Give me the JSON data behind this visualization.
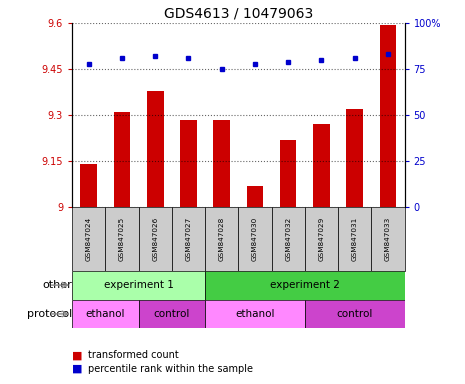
{
  "title": "GDS4613 / 10479063",
  "samples": [
    "GSM847024",
    "GSM847025",
    "GSM847026",
    "GSM847027",
    "GSM847028",
    "GSM847030",
    "GSM847032",
    "GSM847029",
    "GSM847031",
    "GSM847033"
  ],
  "transformed_count": [
    9.14,
    9.31,
    9.38,
    9.285,
    9.285,
    9.07,
    9.22,
    9.27,
    9.32,
    9.595
  ],
  "percentile_rank": [
    78,
    81,
    82,
    81,
    75,
    78,
    79,
    80,
    81,
    83
  ],
  "ylim_left": [
    9.0,
    9.6
  ],
  "ylim_right": [
    0,
    100
  ],
  "yticks_left": [
    9.0,
    9.15,
    9.3,
    9.45,
    9.6
  ],
  "yticks_right": [
    0,
    25,
    50,
    75,
    100
  ],
  "ytick_labels_left": [
    "9",
    "9.15",
    "9.3",
    "9.45",
    "9.6"
  ],
  "ytick_labels_right": [
    "0",
    "25",
    "50",
    "75",
    "100%"
  ],
  "bar_color": "#cc0000",
  "dot_color": "#0000cc",
  "experiment1_color": "#aaffaa",
  "experiment2_color": "#44cc44",
  "ethanol_color": "#ff88ff",
  "control_color": "#cc44cc",
  "sample_bg_color": "#cccccc",
  "other_groups": [
    {
      "label": "experiment 1",
      "start": 0,
      "end": 4
    },
    {
      "label": "experiment 2",
      "start": 4,
      "end": 10
    }
  ],
  "protocol_groups": [
    {
      "label": "ethanol",
      "start": 0,
      "end": 2,
      "color": "#ff88ff"
    },
    {
      "label": "control",
      "start": 2,
      "end": 4,
      "color": "#cc44cc"
    },
    {
      "label": "ethanol",
      "start": 4,
      "end": 7,
      "color": "#ff88ff"
    },
    {
      "label": "control",
      "start": 7,
      "end": 10,
      "color": "#cc44cc"
    }
  ],
  "legend_items": [
    {
      "label": "transformed count",
      "color": "#cc0000"
    },
    {
      "label": "percentile rank within the sample",
      "color": "#0000cc"
    }
  ]
}
